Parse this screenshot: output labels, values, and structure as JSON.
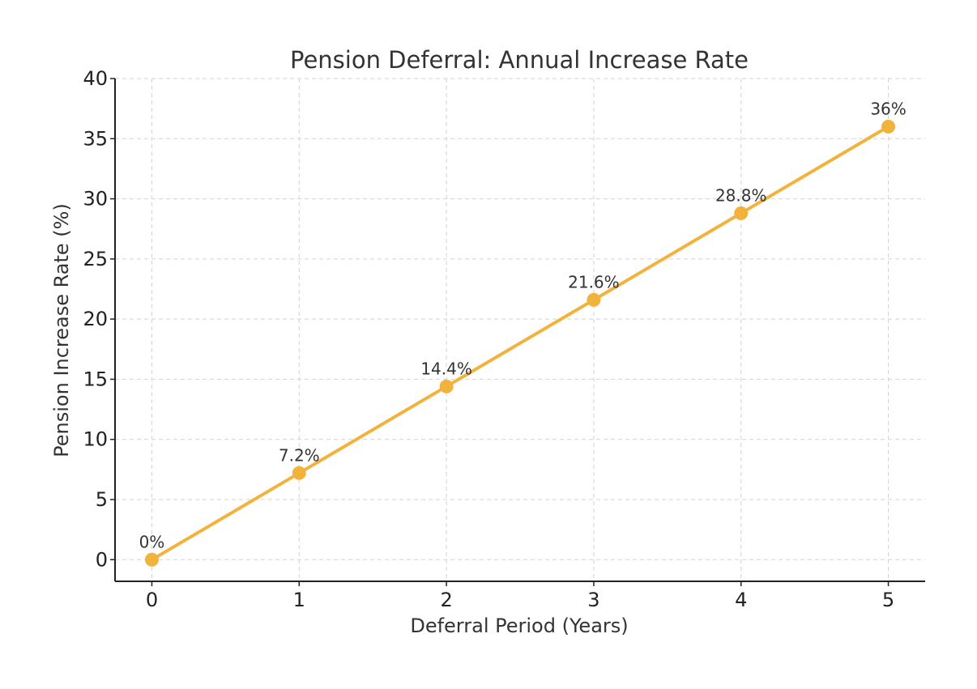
{
  "chart_data": {
    "type": "line",
    "title": "Pension Deferral: Annual Increase Rate",
    "xlabel": "Deferral Period (Years)",
    "ylabel": "Pension Increase Rate (%)",
    "x": [
      0,
      1,
      2,
      3,
      4,
      5
    ],
    "series": [
      {
        "values": [
          0,
          7.2,
          14.4,
          21.6,
          28.8,
          36
        ],
        "labels": [
          "0%",
          "7.2%",
          "14.4%",
          "21.6%",
          "28.8%",
          "36%"
        ],
        "color": "#f2b33d"
      }
    ],
    "xticks": [
      "0",
      "1",
      "2",
      "3",
      "4",
      "5"
    ],
    "yticks": [
      "0",
      "5",
      "10",
      "15",
      "20",
      "25",
      "30",
      "35",
      "40"
    ],
    "xlim": [
      -0.25,
      5.25
    ],
    "ylim": [
      -1.8,
      40
    ],
    "grid": true,
    "legend": "none"
  }
}
